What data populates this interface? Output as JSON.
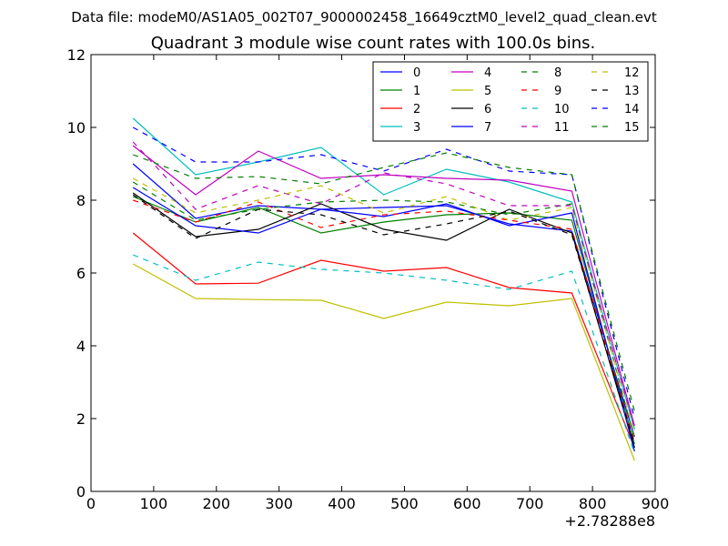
{
  "chart_data": {
    "type": "line",
    "suptitle": "Data file: modeM0/AS1A05_002T07_9000002458_16649cztM0_level2_quad_clean.evt",
    "title": "Quadrant 3 module wise count rates with 100.0s bins.",
    "xlabel": "",
    "ylabel": "",
    "x_offset_label": "+2.78288e8",
    "xlim": [
      0,
      900
    ],
    "ylim": [
      0,
      12
    ],
    "xticks": [
      0,
      100,
      200,
      300,
      400,
      500,
      600,
      700,
      800,
      900
    ],
    "yticks": [
      0,
      2,
      4,
      6,
      8,
      10,
      12
    ],
    "x": [
      67,
      167,
      267,
      367,
      467,
      567,
      667,
      767,
      867
    ],
    "legend_position": "top-right",
    "series": [
      {
        "name": "0",
        "color": "#0000ff",
        "dashed": false,
        "values": [
          9.0,
          7.5,
          7.85,
          7.75,
          7.8,
          7.85,
          7.35,
          7.15,
          1.5
        ]
      },
      {
        "name": "1",
        "color": "#008000",
        "dashed": false,
        "values": [
          8.1,
          7.4,
          7.8,
          7.1,
          7.4,
          7.6,
          7.65,
          7.45,
          1.3
        ]
      },
      {
        "name": "2",
        "color": "#ff0000",
        "dashed": false,
        "values": [
          7.1,
          5.7,
          5.72,
          6.35,
          6.05,
          6.15,
          5.6,
          5.45,
          1.2
        ]
      },
      {
        "name": "3",
        "color": "#00bfbf",
        "dashed": false,
        "values": [
          10.25,
          8.7,
          9.05,
          9.45,
          8.15,
          8.85,
          8.5,
          7.95,
          1.7
        ]
      },
      {
        "name": "4",
        "color": "#bf00bf",
        "dashed": false,
        "values": [
          9.5,
          8.15,
          9.35,
          8.6,
          8.7,
          8.6,
          8.55,
          8.25,
          1.8
        ]
      },
      {
        "name": "5",
        "color": "#bfbf00",
        "dashed": false,
        "values": [
          6.25,
          5.3,
          5.27,
          5.25,
          4.75,
          5.2,
          5.1,
          5.3,
          0.85
        ]
      },
      {
        "name": "6",
        "color": "#000000",
        "dashed": false,
        "values": [
          8.2,
          7.0,
          7.2,
          7.9,
          7.2,
          6.9,
          7.75,
          7.1,
          1.2
        ]
      },
      {
        "name": "7",
        "color": "#0000ff",
        "dashed": false,
        "values": [
          8.35,
          7.3,
          7.1,
          7.75,
          7.55,
          7.9,
          7.3,
          7.65,
          1.1
        ]
      },
      {
        "name": "8",
        "color": "#008000",
        "dashed": true,
        "values": [
          8.5,
          7.45,
          7.75,
          7.95,
          8.0,
          7.95,
          7.6,
          7.9,
          1.45
        ]
      },
      {
        "name": "9",
        "color": "#ff0000",
        "dashed": true,
        "values": [
          8.0,
          7.4,
          7.95,
          7.25,
          7.6,
          7.7,
          7.45,
          7.2,
          1.35
        ]
      },
      {
        "name": "10",
        "color": "#00bfbf",
        "dashed": true,
        "values": [
          6.5,
          5.8,
          6.3,
          6.1,
          6.0,
          5.8,
          5.55,
          6.05,
          1.05
        ]
      },
      {
        "name": "11",
        "color": "#bf00bf",
        "dashed": true,
        "values": [
          9.6,
          7.75,
          8.4,
          7.9,
          8.75,
          8.45,
          7.85,
          7.85,
          1.75
        ]
      },
      {
        "name": "12",
        "color": "#bfbf00",
        "dashed": true,
        "values": [
          8.6,
          7.65,
          8.0,
          8.4,
          7.65,
          8.1,
          7.45,
          7.8,
          1.55
        ]
      },
      {
        "name": "13",
        "color": "#000000",
        "dashed": true,
        "values": [
          8.15,
          6.95,
          7.75,
          7.6,
          7.05,
          7.35,
          7.7,
          7.05,
          1.3
        ]
      },
      {
        "name": "14",
        "color": "#0000ff",
        "dashed": true,
        "values": [
          10.0,
          9.05,
          9.05,
          9.25,
          8.8,
          9.4,
          8.8,
          8.7,
          2.0
        ]
      },
      {
        "name": "15",
        "color": "#008000",
        "dashed": true,
        "values": [
          9.25,
          8.6,
          8.65,
          8.45,
          8.9,
          9.3,
          8.9,
          8.7,
          2.2
        ]
      }
    ]
  }
}
